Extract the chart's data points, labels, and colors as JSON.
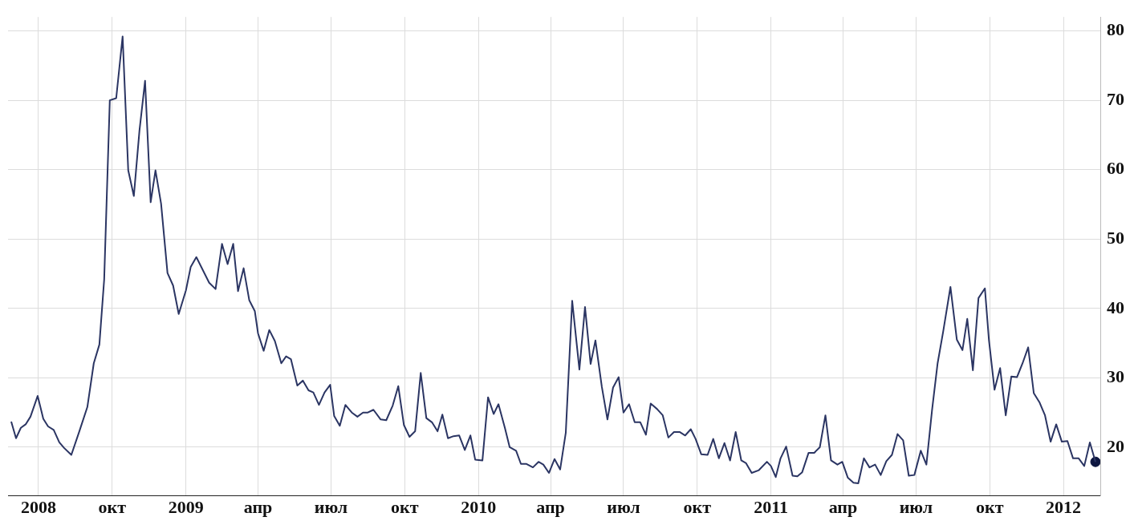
{
  "chart_data": {
    "type": "line",
    "xlim": [
      "2008-05-24",
      "2012-02-16"
    ],
    "ylim": [
      13,
      82
    ],
    "yticks": [
      20,
      30,
      40,
      50,
      60,
      70,
      80
    ],
    "grid": true,
    "legend": false,
    "marker": "none",
    "line_style": "solid",
    "xticks": [
      {
        "value": "2008-07",
        "label": "2008"
      },
      {
        "value": "2008-10",
        "label": "окт"
      },
      {
        "value": "2009-01",
        "label": "2009"
      },
      {
        "value": "2009-04",
        "label": "апр"
      },
      {
        "value": "2009-07",
        "label": "июл"
      },
      {
        "value": "2009-10",
        "label": "окт"
      },
      {
        "value": "2010-01",
        "label": "2010"
      },
      {
        "value": "2010-04",
        "label": "апр"
      },
      {
        "value": "2010-07",
        "label": "июл"
      },
      {
        "value": "2010-10",
        "label": "окт"
      },
      {
        "value": "2011-01",
        "label": "2011"
      },
      {
        "value": "2011-04",
        "label": "апр"
      },
      {
        "value": "2011-07",
        "label": "июл"
      },
      {
        "value": "2011-10",
        "label": "окт"
      },
      {
        "value": "2012-01",
        "label": "2012"
      }
    ],
    "series": [
      {
        "color": "#2b3563",
        "x": [
          "2008-05-28",
          "2008-06-03",
          "2008-06-09",
          "2008-06-15",
          "2008-06-21",
          "2008-06-30",
          "2008-07-07",
          "2008-07-13",
          "2008-07-20",
          "2008-07-27",
          "2008-08-02",
          "2008-08-11",
          "2008-08-21",
          "2008-08-31",
          "2008-09-08",
          "2008-09-15",
          "2008-09-21",
          "2008-09-28",
          "2008-10-06",
          "2008-10-14",
          "2008-10-21",
          "2008-10-28",
          "2008-11-04",
          "2008-11-11",
          "2008-11-18",
          "2008-11-24",
          "2008-12-01",
          "2008-12-09",
          "2008-12-16",
          "2008-12-23",
          "2009-01-01",
          "2009-01-07",
          "2009-01-14",
          "2009-01-30",
          "2009-02-07",
          "2009-02-15",
          "2009-02-22",
          "2009-03-01",
          "2009-03-07",
          "2009-03-14",
          "2009-03-21",
          "2009-03-28",
          "2009-04-01",
          "2009-04-08",
          "2009-04-15",
          "2009-04-22",
          "2009-04-30",
          "2009-05-06",
          "2009-05-12",
          "2009-05-20",
          "2009-05-27",
          "2009-06-03",
          "2009-06-09",
          "2009-06-16",
          "2009-06-23",
          "2009-06-30",
          "2009-07-05",
          "2009-07-12",
          "2009-07-19",
          "2009-07-27",
          "2009-08-03",
          "2009-08-10",
          "2009-08-16",
          "2009-08-23",
          "2009-09-01",
          "2009-09-08",
          "2009-09-16",
          "2009-09-23",
          "2009-09-30",
          "2009-10-07",
          "2009-10-14",
          "2009-10-21",
          "2009-10-28",
          "2009-11-04",
          "2009-11-11",
          "2009-11-17",
          "2009-11-24",
          "2009-12-01",
          "2009-12-08",
          "2009-12-15",
          "2009-12-22",
          "2009-12-28",
          "2010-01-06",
          "2010-01-13",
          "2010-01-20",
          "2010-01-26",
          "2010-02-03",
          "2010-02-09",
          "2010-02-17",
          "2010-02-23",
          "2010-03-02",
          "2010-03-10",
          "2010-03-17",
          "2010-03-23",
          "2010-03-30",
          "2010-04-06",
          "2010-04-13",
          "2010-04-20",
          "2010-04-28",
          "2010-05-07",
          "2010-05-14",
          "2010-05-21",
          "2010-05-27",
          "2010-06-04",
          "2010-06-11",
          "2010-06-18",
          "2010-06-25",
          "2010-07-01",
          "2010-07-08",
          "2010-07-15",
          "2010-07-22",
          "2010-07-29",
          "2010-08-04",
          "2010-08-12",
          "2010-08-19",
          "2010-08-26",
          "2010-09-02",
          "2010-09-09",
          "2010-09-16",
          "2010-09-23",
          "2010-09-29",
          "2010-10-06",
          "2010-10-14",
          "2010-10-21",
          "2010-10-28",
          "2010-11-04",
          "2010-11-11",
          "2010-11-18",
          "2010-11-25",
          "2010-12-01",
          "2010-12-08",
          "2010-12-17",
          "2010-12-27",
          "2011-01-01",
          "2011-01-07",
          "2011-01-13",
          "2011-01-20",
          "2011-01-28",
          "2011-02-03",
          "2011-02-09",
          "2011-02-17",
          "2011-02-24",
          "2011-03-03",
          "2011-03-10",
          "2011-03-17",
          "2011-03-25",
          "2011-03-31",
          "2011-04-07",
          "2011-04-14",
          "2011-04-20",
          "2011-04-27",
          "2011-05-04",
          "2011-05-11",
          "2011-05-18",
          "2011-05-25",
          "2011-06-01",
          "2011-06-08",
          "2011-06-15",
          "2011-06-22",
          "2011-06-29",
          "2011-07-07",
          "2011-07-14",
          "2011-07-21",
          "2011-07-28",
          "2011-08-04",
          "2011-08-13",
          "2011-08-21",
          "2011-08-28",
          "2011-09-03",
          "2011-09-10",
          "2011-09-17",
          "2011-09-25",
          "2011-09-30",
          "2011-10-07",
          "2011-10-14",
          "2011-10-21",
          "2011-10-28",
          "2011-11-04",
          "2011-11-11",
          "2011-11-18",
          "2011-11-25",
          "2011-12-02",
          "2011-12-09",
          "2011-12-16",
          "2011-12-23",
          "2011-12-30",
          "2012-01-06",
          "2012-01-13",
          "2012-01-20",
          "2012-01-27",
          "2012-02-03",
          "2012-02-10"
        ],
        "values": [
          23.7,
          21.3,
          22.8,
          23.3,
          24.4,
          27.4,
          24.1,
          23.0,
          22.5,
          20.7,
          19.9,
          18.9,
          22.3,
          25.8,
          32.1,
          34.8,
          44.2,
          70.0,
          70.3,
          79.2,
          59.9,
          56.2,
          65.6,
          72.8,
          55.3,
          59.9,
          55.1,
          45.1,
          43.3,
          39.2,
          42.6,
          46.0,
          47.4,
          43.7,
          42.8,
          49.3,
          46.4,
          49.3,
          42.5,
          45.8,
          41.2,
          39.6,
          36.4,
          33.9,
          36.9,
          35.3,
          32.1,
          33.1,
          32.7,
          28.9,
          29.6,
          28.2,
          27.9,
          26.1,
          27.9,
          29.0,
          24.5,
          23.1,
          26.1,
          25.0,
          24.4,
          25.0,
          25.0,
          25.4,
          24.0,
          23.9,
          26.0,
          28.8,
          23.2,
          21.5,
          22.3,
          30.7,
          24.2,
          23.6,
          22.3,
          24.7,
          21.3,
          21.6,
          21.7,
          19.6,
          21.7,
          18.2,
          18.1,
          27.2,
          24.8,
          26.2,
          22.8,
          20.0,
          19.5,
          17.6,
          17.6,
          17.1,
          17.9,
          17.5,
          16.3,
          18.3,
          16.8,
          22.1,
          41.1,
          31.2,
          40.2,
          32.0,
          35.4,
          28.7,
          24.0,
          28.6,
          30.1,
          25.0,
          26.2,
          23.6,
          23.6,
          21.8,
          26.3,
          25.5,
          24.6,
          21.4,
          22.2,
          22.2,
          21.7,
          22.6,
          21.2,
          19.0,
          18.9,
          21.2,
          18.4,
          20.6,
          18.1,
          22.2,
          18.1,
          17.7,
          16.3,
          16.7,
          17.9,
          17.3,
          15.7,
          18.4,
          20.1,
          15.9,
          15.8,
          16.4,
          19.2,
          19.2,
          20.0,
          24.6,
          18.1,
          17.5,
          17.9,
          15.6,
          14.9,
          14.8,
          18.4,
          17.1,
          17.5,
          16.0,
          18.0,
          18.9,
          21.9,
          21.0,
          15.9,
          16.0,
          19.5,
          17.5,
          25.3,
          32.1,
          36.7,
          43.1,
          35.5,
          34.0,
          38.5,
          31.1,
          41.5,
          42.9,
          35.5,
          28.3,
          31.4,
          24.6,
          30.2,
          30.1,
          32.1,
          34.4,
          27.8,
          26.5,
          24.6,
          20.8,
          23.3,
          20.8,
          20.9,
          18.4,
          18.4,
          17.3,
          20.7,
          17.9
        ]
      },
      {
        "type": "scatter",
        "color": "#0d1640",
        "marker": "circle",
        "x": [
          "2012-02-10"
        ],
        "values": [
          17.9
        ]
      }
    ]
  }
}
